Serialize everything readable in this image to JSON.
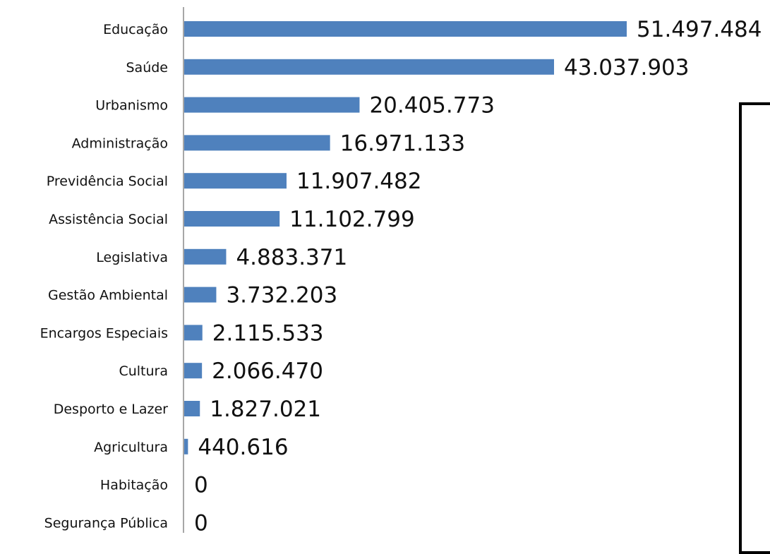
{
  "chart_data": {
    "type": "bar",
    "orientation": "horizontal",
    "categories": [
      "Educação",
      "Saúde",
      "Urbanismo",
      "Administração",
      "Previdência Social",
      "Assistência Social",
      "Legislativa",
      "Gestão Ambiental",
      "Encargos Especiais",
      "Cultura",
      "Desporto e Lazer",
      "Agricultura",
      "Habitação",
      "Segurança Pública"
    ],
    "values": [
      51497484,
      43037903,
      20405773,
      16971133,
      11907482,
      11102799,
      4883371,
      3732203,
      2115533,
      2066470,
      1827021,
      440616,
      0,
      0
    ],
    "data_labels": [
      "51.497.484",
      "43.037.903",
      "20.405.773",
      "16.971.133",
      "11.907.482",
      "11.102.799",
      "4.883.371",
      "3.732.203",
      "2.115.533",
      "2.066.470",
      "1.827.021",
      "440.616",
      "0",
      "0"
    ],
    "title": "",
    "xlabel": "",
    "ylabel": "",
    "grid": false,
    "legend": "none",
    "bar_color": "#4f81bd"
  },
  "overlay": {
    "shape_fill": "#8db354",
    "border_color": "#000000"
  }
}
